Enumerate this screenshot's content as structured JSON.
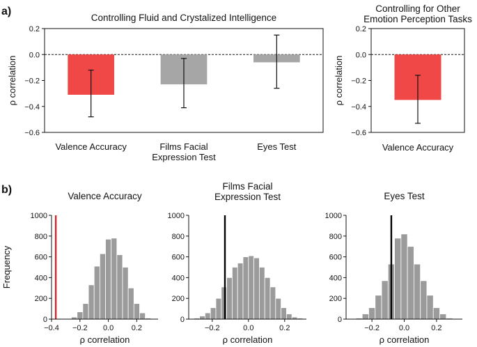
{
  "panel_labels": {
    "a": "a)",
    "b": "b)"
  },
  "chart_data": [
    {
      "id": "a-left",
      "type": "bar",
      "title": "Controlling Fluid and Crystalized Intelligence",
      "ylabel": "ρ correlation",
      "xlabel": "",
      "ylim": [
        -0.6,
        0.2
      ],
      "yticks": [
        -0.6,
        -0.4,
        -0.2,
        0.0,
        0.2
      ],
      "ytick_labels": [
        "−0.6",
        "−0.4",
        "−0.2",
        "0.0",
        "0.2"
      ],
      "categories": [
        "Valence Accuracy",
        "Films Facial|Expression Test",
        "Eyes Test"
      ],
      "values": [
        -0.31,
        -0.23,
        -0.06
      ],
      "ci_low": [
        -0.48,
        -0.41,
        -0.26
      ],
      "ci_high": [
        -0.12,
        -0.03,
        0.15
      ],
      "colors": [
        "#f04747",
        "#a6a6a6",
        "#a6a6a6"
      ],
      "reference_line": 0.0
    },
    {
      "id": "a-right",
      "type": "bar",
      "title": "Controlling for Other|Emotion Perception Tasks",
      "ylabel": "ρ correlation",
      "xlabel": "",
      "ylim": [
        -0.6,
        0.2
      ],
      "yticks": [
        -0.6,
        -0.4,
        -0.2,
        0.0,
        0.2
      ],
      "ytick_labels": [
        "−0.6",
        "−0.4",
        "−0.2",
        "0.0",
        "0.2"
      ],
      "categories": [
        "Valence Accuracy"
      ],
      "values": [
        -0.35
      ],
      "ci_low": [
        -0.53
      ],
      "ci_high": [
        -0.16
      ],
      "colors": [
        "#f04747"
      ],
      "reference_line": 0.0
    },
    {
      "id": "b-1",
      "type": "histogram",
      "title": "Valence Accuracy",
      "xlabel": "ρ correlation",
      "ylabel": "Frequency",
      "xlim": [
        -0.4,
        0.35
      ],
      "ylim": [
        0,
        1000
      ],
      "xticks": [
        -0.4,
        -0.2,
        0.0,
        0.2
      ],
      "xtick_labels": [
        "−0.4",
        "−0.2",
        "0.0",
        "0.2"
      ],
      "yticks": [
        0,
        200,
        400,
        600,
        800,
        1000
      ],
      "ytick_labels": [
        "0",
        "200",
        "400",
        "600",
        "800",
        "1000"
      ],
      "bin_width": 0.04,
      "bin_starts": [
        -0.26,
        -0.22,
        -0.18,
        -0.14,
        -0.1,
        -0.06,
        -0.02,
        0.02,
        0.06,
        0.1,
        0.14,
        0.18,
        0.22,
        0.26
      ],
      "counts": [
        20,
        70,
        150,
        330,
        510,
        630,
        770,
        780,
        620,
        500,
        300,
        150,
        60,
        10
      ],
      "observed_value": -0.37,
      "observed_color": "#d62728"
    },
    {
      "id": "b-2",
      "type": "histogram",
      "title": "Films Facial|Expression Test",
      "xlabel": "ρ correlation",
      "ylabel": "",
      "xlim": [
        -0.33,
        0.32
      ],
      "ylim": [
        0,
        1000
      ],
      "xticks": [
        -0.2,
        0.0,
        0.2
      ],
      "xtick_labels": [
        "−0.2",
        "0.0",
        "0.2"
      ],
      "yticks": [
        0,
        200,
        400,
        600,
        800,
        1000
      ],
      "ytick_labels": [
        "0",
        "200",
        "400",
        "600",
        "800",
        "1000"
      ],
      "bin_width": 0.03,
      "bin_starts": [
        -0.3,
        -0.27,
        -0.24,
        -0.21,
        -0.18,
        -0.15,
        -0.12,
        -0.09,
        -0.06,
        -0.03,
        0.0,
        0.03,
        0.06,
        0.09,
        0.12,
        0.15,
        0.18,
        0.21,
        0.24,
        0.27
      ],
      "counts": [
        10,
        30,
        60,
        110,
        200,
        310,
        400,
        500,
        540,
        600,
        610,
        590,
        500,
        400,
        310,
        200,
        110,
        50,
        20,
        10
      ],
      "observed_value": -0.13,
      "observed_color": "#000000"
    },
    {
      "id": "b-3",
      "type": "histogram",
      "title": "Eyes Test",
      "xlabel": "ρ correlation",
      "ylabel": "",
      "xlim": [
        -0.36,
        0.36
      ],
      "ylim": [
        0,
        1000
      ],
      "xticks": [
        -0.2,
        0.0,
        0.2
      ],
      "xtick_labels": [
        "−0.2",
        "0.0",
        "0.2"
      ],
      "yticks": [
        0,
        200,
        400,
        600,
        800,
        1000
      ],
      "ytick_labels": [
        "0",
        "200",
        "400",
        "600",
        "800",
        "1000"
      ],
      "bin_width": 0.04,
      "bin_starts": [
        -0.3,
        -0.26,
        -0.22,
        -0.18,
        -0.14,
        -0.1,
        -0.06,
        -0.02,
        0.02,
        0.06,
        0.1,
        0.14,
        0.18,
        0.22,
        0.26
      ],
      "counts": [
        10,
        50,
        110,
        230,
        370,
        530,
        780,
        820,
        700,
        530,
        370,
        230,
        110,
        50,
        10
      ],
      "observed_value": -0.08,
      "observed_color": "#000000"
    }
  ]
}
